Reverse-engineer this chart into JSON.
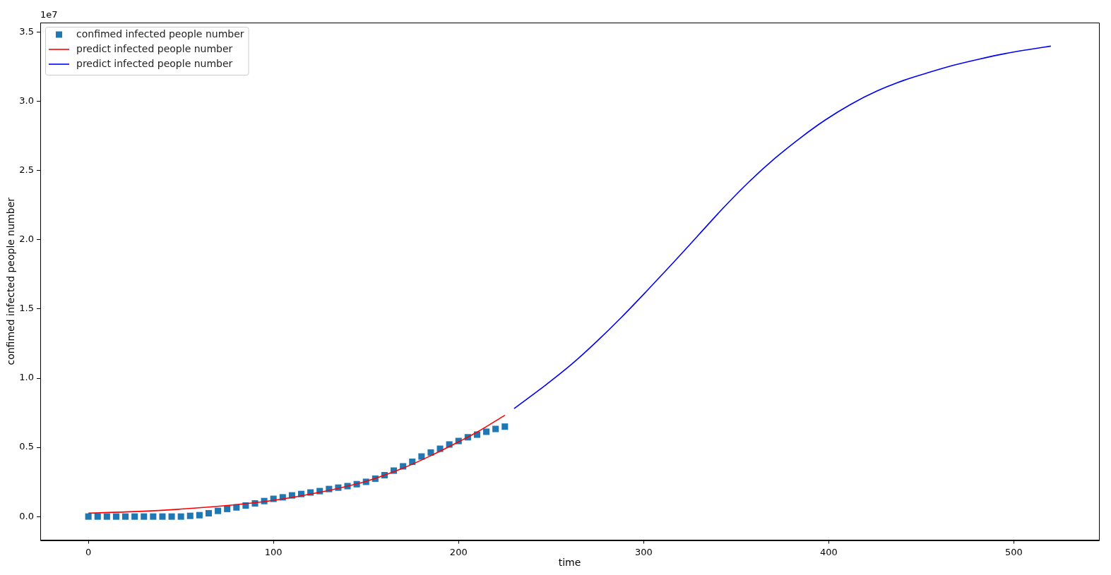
{
  "chart_data": {
    "type": "line",
    "xlabel": "time",
    "ylabel": "confimed infected people number",
    "annotations": [
      "1e7"
    ],
    "xlim": [
      -26,
      546
    ],
    "ylim": [
      -0.17,
      3.57
    ],
    "xticks": [
      0,
      100,
      200,
      300,
      400,
      500
    ],
    "yticks": [
      {
        "value": 0,
        "label": "0.0"
      },
      0.5,
      {
        "value": 1,
        "label": "1.0"
      },
      1.5,
      {
        "value": 2,
        "label": "2.0"
      },
      2.5,
      {
        "value": 3,
        "label": "3.0"
      },
      3.5
    ],
    "grid": false,
    "legend": "top left",
    "series": [
      {
        "name": "confimed infected people number",
        "type": "scatter",
        "marker": "square",
        "color": "#1f77b4",
        "x": [
          0,
          5,
          10,
          15,
          20,
          25,
          30,
          35,
          40,
          45,
          50,
          55,
          60,
          65,
          70,
          75,
          80,
          85,
          90,
          95,
          100,
          105,
          110,
          115,
          120,
          125,
          130,
          135,
          140,
          145,
          150,
          155,
          160,
          165,
          170,
          175,
          180,
          185,
          190,
          195,
          200,
          205,
          210,
          215,
          220,
          225
        ],
        "values": [
          0,
          0,
          0,
          0,
          0,
          0,
          0,
          0,
          0,
          0,
          0,
          0.005,
          0.01,
          0.024,
          0.041,
          0.055,
          0.066,
          0.08,
          0.095,
          0.112,
          0.128,
          0.139,
          0.153,
          0.163,
          0.174,
          0.184,
          0.199,
          0.209,
          0.22,
          0.234,
          0.251,
          0.274,
          0.299,
          0.332,
          0.363,
          0.396,
          0.434,
          0.463,
          0.49,
          0.521,
          0.546,
          0.573,
          0.592,
          0.613,
          0.633,
          0.65
        ]
      },
      {
        "name": "predict infected people number",
        "color": "#ff0000",
        "x": [
          0,
          25,
          50,
          75,
          100,
          125,
          150,
          170,
          185,
          200,
          210,
          225
        ],
        "values": [
          0.025,
          0.036,
          0.054,
          0.08,
          0.117,
          0.175,
          0.255,
          0.35,
          0.44,
          0.54,
          0.61,
          0.732
        ]
      },
      {
        "name": "predict infected people number",
        "color": "#0000ff",
        "x": [
          230,
          247,
          261,
          275,
          288,
          302,
          316,
          330,
          343,
          357,
          371,
          385,
          398,
          412,
          426,
          440,
          453,
          467,
          481,
          495,
          508,
          520
        ],
        "values": [
          0.78,
          0.95,
          1.1,
          1.27,
          1.44,
          1.635,
          1.835,
          2.04,
          2.23,
          2.42,
          2.59,
          2.74,
          2.865,
          2.98,
          3.075,
          3.15,
          3.205,
          3.26,
          3.305,
          3.345,
          3.375,
          3.4
        ]
      }
    ]
  }
}
